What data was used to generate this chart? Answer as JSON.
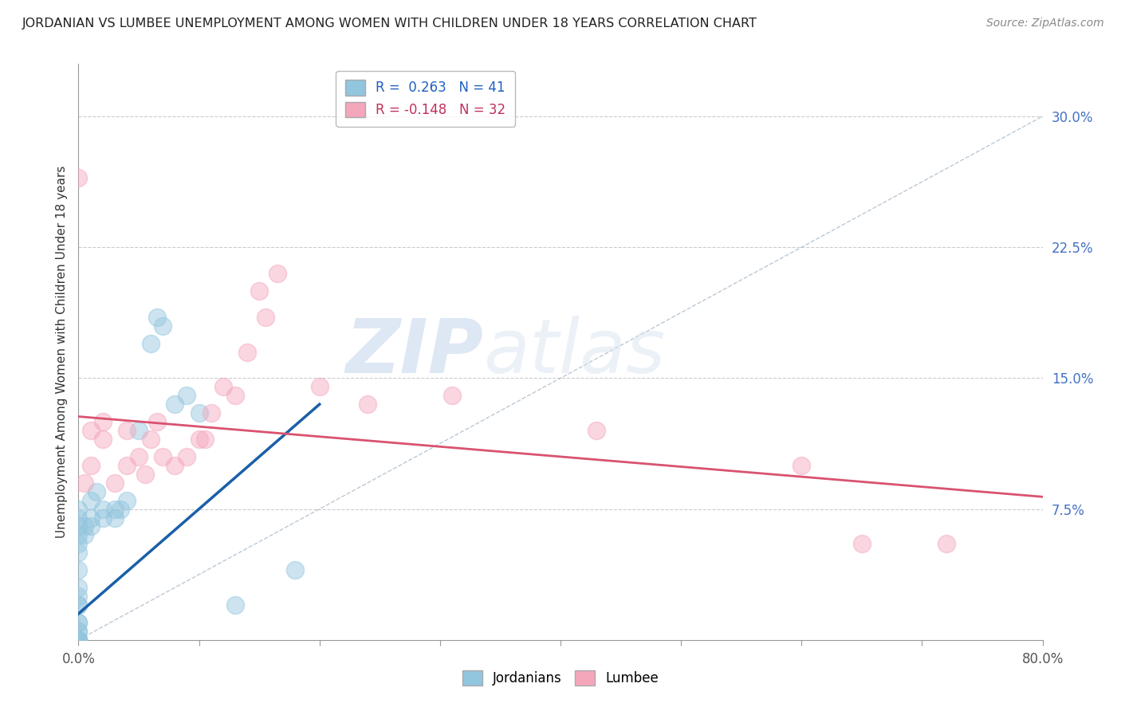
{
  "title": "JORDANIAN VS LUMBEE UNEMPLOYMENT AMONG WOMEN WITH CHILDREN UNDER 18 YEARS CORRELATION CHART",
  "source": "Source: ZipAtlas.com",
  "ylabel": "Unemployment Among Women with Children Under 18 years",
  "xlim": [
    0,
    0.8
  ],
  "ylim": [
    0,
    0.33
  ],
  "legend_r1": "R =  0.263   N = 41",
  "legend_r2": "R = -0.148   N = 32",
  "blue_color": "#92c5de",
  "pink_color": "#f4a6bb",
  "trend_blue": "#1a5fa8",
  "trend_pink": "#d9536f",
  "background": "#ffffff",
  "jordanians_x": [
    0.0,
    0.0,
    0.0,
    0.0,
    0.0,
    0.0,
    0.0,
    0.0,
    0.0,
    0.0,
    0.0,
    0.0,
    0.0,
    0.0,
    0.0,
    0.0,
    0.0,
    0.0,
    0.0,
    0.0,
    0.005,
    0.005,
    0.01,
    0.01,
    0.01,
    0.015,
    0.02,
    0.02,
    0.03,
    0.03,
    0.035,
    0.04,
    0.05,
    0.06,
    0.065,
    0.07,
    0.08,
    0.09,
    0.1,
    0.13,
    0.18
  ],
  "jordanians_y": [
    0.0,
    0.0,
    0.0,
    0.0,
    0.0,
    0.005,
    0.005,
    0.01,
    0.01,
    0.02,
    0.02,
    0.025,
    0.03,
    0.04,
    0.05,
    0.055,
    0.06,
    0.065,
    0.07,
    0.075,
    0.06,
    0.065,
    0.065,
    0.07,
    0.08,
    0.085,
    0.07,
    0.075,
    0.07,
    0.075,
    0.075,
    0.08,
    0.12,
    0.17,
    0.185,
    0.18,
    0.135,
    0.14,
    0.13,
    0.02,
    0.04
  ],
  "lumbee_x": [
    0.0,
    0.005,
    0.01,
    0.01,
    0.02,
    0.02,
    0.03,
    0.04,
    0.04,
    0.05,
    0.055,
    0.06,
    0.065,
    0.07,
    0.08,
    0.09,
    0.1,
    0.105,
    0.11,
    0.12,
    0.13,
    0.14,
    0.15,
    0.155,
    0.165,
    0.2,
    0.24,
    0.31,
    0.43,
    0.6,
    0.65,
    0.72
  ],
  "lumbee_y": [
    0.265,
    0.09,
    0.1,
    0.12,
    0.115,
    0.125,
    0.09,
    0.1,
    0.12,
    0.105,
    0.095,
    0.115,
    0.125,
    0.105,
    0.1,
    0.105,
    0.115,
    0.115,
    0.13,
    0.145,
    0.14,
    0.165,
    0.2,
    0.185,
    0.21,
    0.145,
    0.135,
    0.14,
    0.12,
    0.1,
    0.055,
    0.055
  ]
}
